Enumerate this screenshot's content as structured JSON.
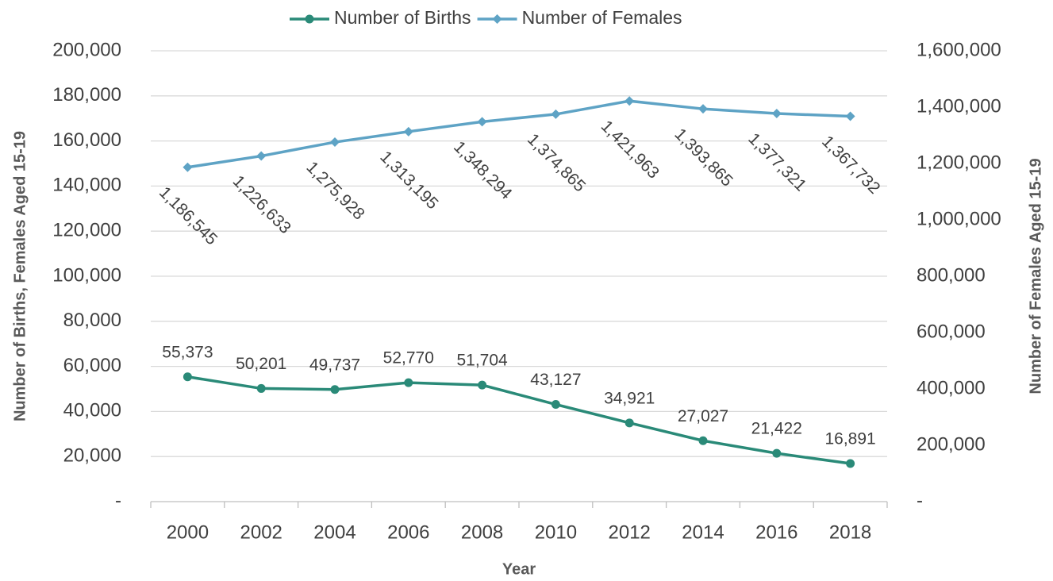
{
  "chart_data": {
    "type": "line",
    "categories": [
      "2000",
      "2002",
      "2004",
      "2006",
      "2008",
      "2010",
      "2012",
      "2014",
      "2016",
      "2018"
    ],
    "series": [
      {
        "name": "Number of Births",
        "color": "#2a8a78",
        "marker": "circle",
        "values": [
          55373,
          50201,
          49737,
          52770,
          51704,
          43127,
          34921,
          27027,
          21422,
          16891
        ],
        "value_labels": [
          "55,373",
          "50,201",
          "49,737",
          "52,770",
          "51,704",
          "43,127",
          "34,921",
          "27,027",
          "21,422",
          "16,891"
        ]
      },
      {
        "name": "Number of Females",
        "color": "#5ea3c5",
        "marker": "diamond",
        "axis": "y2",
        "values": [
          1186545,
          1226633,
          1275928,
          1313195,
          1348294,
          1374865,
          1421963,
          1393865,
          1377321,
          1367732
        ],
        "value_labels": [
          "1,186,545",
          "1,226,633",
          "1,275,928",
          "1,313,195",
          "1,348,294",
          "1,374,865",
          "1,421,963",
          "1,393,865",
          "1,377,321",
          "1,367,732"
        ]
      }
    ],
    "xlabel": "Year",
    "ylabel": "Number of Births, Females Aged 15-19",
    "y2label": "Number of Females Aged 15-19",
    "ylim": [
      0,
      200000
    ],
    "yticks": [
      {
        "value": 0,
        "label": "-"
      },
      {
        "value": 20000,
        "label": "20,000"
      },
      {
        "value": 40000,
        "label": "40,000"
      },
      {
        "value": 60000,
        "label": "60,000"
      },
      {
        "value": 80000,
        "label": "80,000"
      },
      {
        "value": 100000,
        "label": "100,000"
      },
      {
        "value": 120000,
        "label": "120,000"
      },
      {
        "value": 140000,
        "label": "140,000"
      },
      {
        "value": 160000,
        "label": "160,000"
      },
      {
        "value": 180000,
        "label": "180,000"
      },
      {
        "value": 200000,
        "label": "200,000"
      }
    ],
    "y2lim": [
      0,
      1600000
    ],
    "y2ticks": [
      {
        "value": 0,
        "label": "-"
      },
      {
        "value": 200000,
        "label": "200,000"
      },
      {
        "value": 400000,
        "label": "400,000"
      },
      {
        "value": 600000,
        "label": "600,000"
      },
      {
        "value": 800000,
        "label": "800,000"
      },
      {
        "value": 1000000,
        "label": "1,000,000"
      },
      {
        "value": 1200000,
        "label": "1,200,000"
      },
      {
        "value": 1400000,
        "label": "1,400,000"
      },
      {
        "value": 1600000,
        "label": "1,600,000"
      }
    ],
    "grid": true,
    "legend": "top"
  }
}
